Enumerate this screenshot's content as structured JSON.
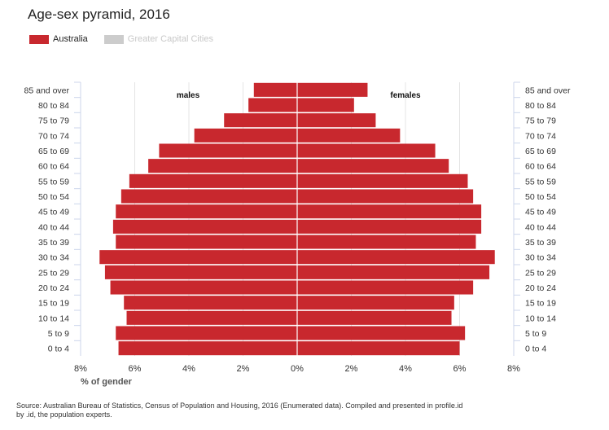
{
  "chart_data": {
    "type": "bar",
    "orientation": "horizontal-pyramid",
    "title": "Age-sex pyramid, 2016",
    "xlabel": "% of gender",
    "categories": [
      "0 to 4",
      "5 to 9",
      "10 to 14",
      "15 to 19",
      "20 to 24",
      "25 to 29",
      "30 to 34",
      "35 to 39",
      "40 to 44",
      "45 to 49",
      "50 to 54",
      "55 to 59",
      "60 to 64",
      "65 to 69",
      "70 to 74",
      "75 to 79",
      "80 to 84",
      "85 and over"
    ],
    "series": [
      {
        "name": "Australia",
        "side": "males",
        "values": [
          6.6,
          6.7,
          6.3,
          6.4,
          6.9,
          7.1,
          7.3,
          6.7,
          6.8,
          6.7,
          6.5,
          6.2,
          5.5,
          5.1,
          3.8,
          2.7,
          1.8,
          1.6
        ]
      },
      {
        "name": "Australia",
        "side": "females",
        "values": [
          6.0,
          6.2,
          5.7,
          5.8,
          6.5,
          7.1,
          7.3,
          6.6,
          6.8,
          6.8,
          6.5,
          6.3,
          5.6,
          5.1,
          3.8,
          2.9,
          2.1,
          2.6
        ]
      }
    ],
    "side_labels": {
      "left": "males",
      "right": "females"
    },
    "xlim": [
      -8,
      8
    ],
    "ticks": [
      "8%",
      "6%",
      "4%",
      "2%",
      "0%",
      "2%",
      "4%",
      "6%",
      "8%"
    ],
    "tick_values": [
      -8,
      -6,
      -4,
      -2,
      0,
      2,
      4,
      6,
      8
    ],
    "grid": true,
    "legend": [
      {
        "name": "Australia",
        "color": "#c8282e",
        "active": true
      },
      {
        "name": "Greater Capital Cities",
        "color": "#cccccc",
        "active": false
      }
    ],
    "legend_position": "top-left",
    "bar_color": "#c8282e"
  },
  "source_text": "Source: Australian Bureau of Statistics, Census of Population and Housing, 2016 (Enumerated data). Compiled and presented in profile.id by .id, the population experts."
}
